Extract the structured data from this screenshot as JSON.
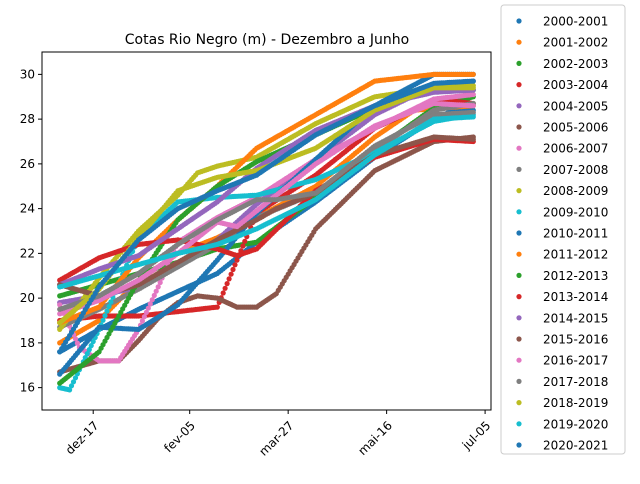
{
  "chart_data": {
    "type": "scatter",
    "title": "Cotas Rio Negro (m) - Dezembro a Junho",
    "xlabel": "",
    "ylabel": "",
    "x_ticks": [
      "dez-17",
      "fev-05",
      "mar-27",
      "mai-16",
      "jul-05"
    ],
    "x_tick_days": [
      17,
      66,
      116,
      166,
      216
    ],
    "x_range_days": [
      -9,
      219
    ],
    "x_unit": "days after 1 December",
    "ylim": [
      15.0,
      31.0
    ],
    "y_ticks": [
      16,
      18,
      20,
      22,
      24,
      26,
      28,
      30
    ],
    "legend_position": "outside right",
    "grid": false,
    "marker": "dot",
    "series": [
      {
        "name": "2000-2001",
        "color": "#1f77b4",
        "x": [
          0,
          20,
          40,
          60,
          80,
          100,
          130,
          160,
          190,
          200,
          210
        ],
        "y": [
          17.6,
          18.6,
          19.5,
          20.3,
          21.1,
          22.5,
          24.3,
          26.3,
          28.0,
          28.4,
          28.4
        ]
      },
      {
        "name": "2001-2002",
        "color": "#ff7f0e",
        "x": [
          0,
          20,
          40,
          60,
          80,
          100,
          130,
          160,
          180,
          210
        ],
        "y": [
          18.0,
          19.0,
          20.8,
          22.0,
          22.7,
          23.6,
          25.0,
          27.2,
          28.4,
          28.6
        ]
      },
      {
        "name": "2002-2003",
        "color": "#2ca02c",
        "x": [
          0,
          20,
          40,
          60,
          80,
          100,
          130,
          160,
          190,
          210
        ],
        "y": [
          20.1,
          20.6,
          21.1,
          21.6,
          22.2,
          22.5,
          24.5,
          26.6,
          28.5,
          29.0
        ]
      },
      {
        "name": "2003-2004",
        "color": "#d62728",
        "x": [
          0,
          20,
          40,
          60,
          80,
          100,
          130,
          160,
          190,
          200,
          210
        ],
        "y": [
          19.0,
          19.2,
          19.2,
          19.4,
          19.6,
          23.8,
          25.5,
          27.6,
          28.8,
          28.8,
          28.7
        ]
      },
      {
        "name": "2004-2005",
        "color": "#9467bd",
        "x": [
          0,
          20,
          40,
          60,
          80,
          100,
          130,
          160,
          190,
          210
        ],
        "y": [
          19.8,
          20.1,
          20.5,
          21.4,
          22.6,
          24.2,
          26.2,
          28.2,
          29.5,
          29.7
        ]
      },
      {
        "name": "2005-2006",
        "color": "#8c564b",
        "x": [
          0,
          20,
          30,
          40,
          50,
          60,
          70,
          80,
          90,
          100,
          110,
          130,
          160,
          190,
          210
        ],
        "y": [
          16.7,
          17.2,
          17.2,
          18.1,
          19.1,
          19.8,
          20.1,
          20.0,
          19.6,
          19.6,
          20.2,
          23.1,
          25.7,
          27.0,
          27.2
        ]
      },
      {
        "name": "2006-2007",
        "color": "#e377c2",
        "x": [
          0,
          10,
          20,
          30,
          40,
          50,
          60,
          80,
          100,
          130,
          160,
          190,
          210
        ],
        "y": [
          19.7,
          17.8,
          17.2,
          17.2,
          18.6,
          20.5,
          22.5,
          23.6,
          24.5,
          26.2,
          27.6,
          28.9,
          29.1
        ]
      },
      {
        "name": "2007-2008",
        "color": "#7f7f7f",
        "x": [
          0,
          20,
          40,
          60,
          80,
          100,
          130,
          160,
          190,
          210
        ],
        "y": [
          18.7,
          19.5,
          20.4,
          21.4,
          22.4,
          23.6,
          24.7,
          26.6,
          28.4,
          28.7
        ]
      },
      {
        "name": "2008-2009",
        "color": "#bcbd22",
        "x": [
          0,
          20,
          40,
          60,
          70,
          80,
          100,
          130,
          160,
          190,
          210
        ],
        "y": [
          18.6,
          20.9,
          23.0,
          24.6,
          25.6,
          25.9,
          26.3,
          27.8,
          29.0,
          29.4,
          29.5
        ]
      },
      {
        "name": "2009-2010",
        "color": "#17becf",
        "x": [
          0,
          5,
          20,
          40,
          60,
          80,
          100,
          130,
          160,
          190,
          210
        ],
        "y": [
          16.0,
          15.9,
          18.6,
          22.7,
          24.3,
          24.5,
          24.6,
          25.3,
          26.5,
          27.9,
          28.2
        ]
      },
      {
        "name": "2010-2011",
        "color": "#1f77b4",
        "x": [
          0,
          20,
          40,
          60,
          80,
          100,
          130,
          160,
          190,
          210
        ],
        "y": [
          16.6,
          18.7,
          18.6,
          19.7,
          21.7,
          23.8,
          26.2,
          28.6,
          30.0,
          30.0
        ]
      },
      {
        "name": "2011-2012",
        "color": "#ff7f0e",
        "x": [
          0,
          20,
          40,
          60,
          80,
          100,
          130,
          160,
          190,
          210
        ],
        "y": [
          18.9,
          19.6,
          21.8,
          23.5,
          25.0,
          26.7,
          28.2,
          29.7,
          30.0,
          30.0
        ]
      },
      {
        "name": "2012-2013",
        "color": "#2ca02c",
        "x": [
          0,
          20,
          40,
          60,
          80,
          100,
          130,
          160,
          190,
          210
        ],
        "y": [
          16.2,
          17.6,
          20.8,
          23.5,
          25.0,
          26.1,
          27.3,
          28.5,
          29.3,
          29.3
        ]
      },
      {
        "name": "2013-2014",
        "color": "#d62728",
        "x": [
          0,
          20,
          40,
          60,
          80,
          90,
          100,
          130,
          160,
          190,
          210
        ],
        "y": [
          20.8,
          21.8,
          22.4,
          22.6,
          22.2,
          21.9,
          22.2,
          24.8,
          26.3,
          27.1,
          27.0
        ]
      },
      {
        "name": "2014-2015",
        "color": "#9467bd",
        "x": [
          0,
          20,
          40,
          60,
          80,
          100,
          130,
          160,
          190,
          210
        ],
        "y": [
          20.6,
          21.3,
          21.9,
          23.1,
          24.3,
          25.8,
          27.5,
          28.6,
          29.2,
          29.3
        ]
      },
      {
        "name": "2015-2016",
        "color": "#8c564b",
        "x": [
          0,
          20,
          40,
          60,
          80,
          100,
          110,
          130,
          160,
          190,
          210
        ],
        "y": [
          20.6,
          20.1,
          20.6,
          21.6,
          22.6,
          23.5,
          24.0,
          24.7,
          26.4,
          27.2,
          27.1
        ]
      },
      {
        "name": "2016-2017",
        "color": "#e377c2",
        "x": [
          0,
          20,
          40,
          60,
          80,
          90,
          100,
          130,
          160,
          190,
          210
        ],
        "y": [
          19.3,
          19.9,
          20.8,
          22.0,
          23.4,
          23.2,
          23.9,
          26.0,
          27.7,
          28.7,
          28.6
        ]
      },
      {
        "name": "2017-2018",
        "color": "#7f7f7f",
        "x": [
          0,
          20,
          40,
          60,
          80,
          100,
          110,
          130,
          160,
          190,
          210
        ],
        "y": [
          19.5,
          20.1,
          21.1,
          22.4,
          23.5,
          24.4,
          24.4,
          24.7,
          26.8,
          28.2,
          28.3
        ]
      },
      {
        "name": "2018-2019",
        "color": "#bcbd22",
        "x": [
          0,
          20,
          40,
          60,
          80,
          100,
          130,
          160,
          190,
          210
        ],
        "y": [
          18.9,
          20.4,
          22.7,
          24.8,
          25.4,
          25.7,
          26.7,
          28.4,
          29.4,
          29.4
        ]
      },
      {
        "name": "2019-2020",
        "color": "#17becf",
        "x": [
          0,
          20,
          40,
          60,
          80,
          100,
          130,
          160,
          190,
          210
        ],
        "y": [
          20.5,
          21.0,
          21.5,
          22.0,
          22.4,
          23.1,
          24.4,
          26.4,
          28.0,
          28.1
        ]
      },
      {
        "name": "2020-2021",
        "color": "#1f77b4",
        "x": [
          0,
          20,
          40,
          60,
          80,
          100,
          130,
          160,
          190,
          210
        ],
        "y": [
          17.6,
          20.5,
          22.6,
          24.0,
          24.8,
          25.5,
          27.3,
          28.6,
          29.6,
          29.7
        ]
      }
    ]
  }
}
